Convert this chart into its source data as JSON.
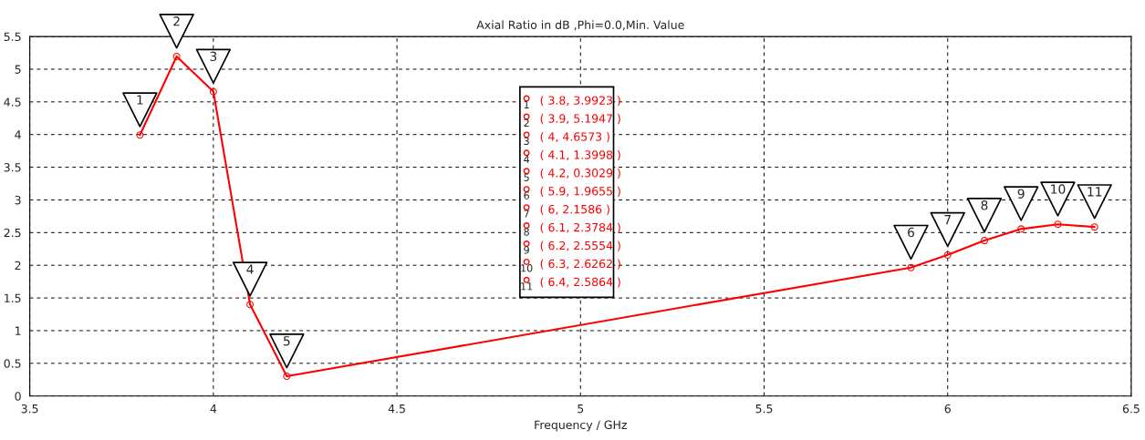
{
  "chart_data": {
    "type": "line",
    "title": "Axial Ratio in dB ,Phi=0.0,Min. Value",
    "xlabel": "Frequency / GHz",
    "x": [
      3.8,
      3.9,
      4,
      4.1,
      4.2,
      5.9,
      6,
      6.1,
      6.2,
      6.3,
      6.4
    ],
    "series": [
      {
        "color": "#ff0000",
        "values": [
          3.9923,
          5.1947,
          4.6573,
          1.3998,
          0.3029,
          1.9655,
          2.1586,
          2.3784,
          2.5554,
          2.6262,
          2.5864
        ]
      }
    ],
    "xlim": [
      3.5,
      6.5
    ],
    "xticks": [
      3.5,
      4,
      4.5,
      5,
      5.5,
      6,
      6.5
    ],
    "ylim": [
      0,
      5.5
    ],
    "yticks": [
      0,
      0.5,
      1,
      1.5,
      2,
      2.5,
      3,
      3.5,
      4,
      4.5,
      5,
      5.5
    ],
    "grid": true,
    "marker": "circle",
    "line_style": "solid",
    "legend": false,
    "annotations": [
      {
        "text": "1",
        "x": 3.8,
        "y": 3.9923
      },
      {
        "text": "2",
        "x": 3.9,
        "y": 5.1947
      },
      {
        "text": "3",
        "x": 4,
        "y": 4.6573
      },
      {
        "text": "4",
        "x": 4.1,
        "y": 1.3998
      },
      {
        "text": "5",
        "x": 4.2,
        "y": 0.3029
      },
      {
        "text": "6",
        "x": 5.9,
        "y": 1.9655
      },
      {
        "text": "7",
        "x": 6,
        "y": 2.1586
      },
      {
        "text": "8",
        "x": 6.1,
        "y": 2.3784
      },
      {
        "text": "9",
        "x": 6.2,
        "y": 2.5554
      },
      {
        "text": "10",
        "x": 6.3,
        "y": 2.6262
      },
      {
        "text": "11",
        "x": 6.4,
        "y": 2.5864
      },
      "( 3.8, 3.9923 )",
      "( 3.9, 5.1947 )",
      "( 4, 4.6573 )",
      "( 4.1, 1.3998 )",
      "( 4.2, 0.3029 )",
      "( 5.9, 1.9655 )",
      "( 6, 2.1586 )",
      "( 6.1, 2.3784 )",
      "( 6.2, 2.5554 )",
      "( 6.3, 2.6262 )",
      "( 6.4, 2.5864 )"
    ]
  }
}
